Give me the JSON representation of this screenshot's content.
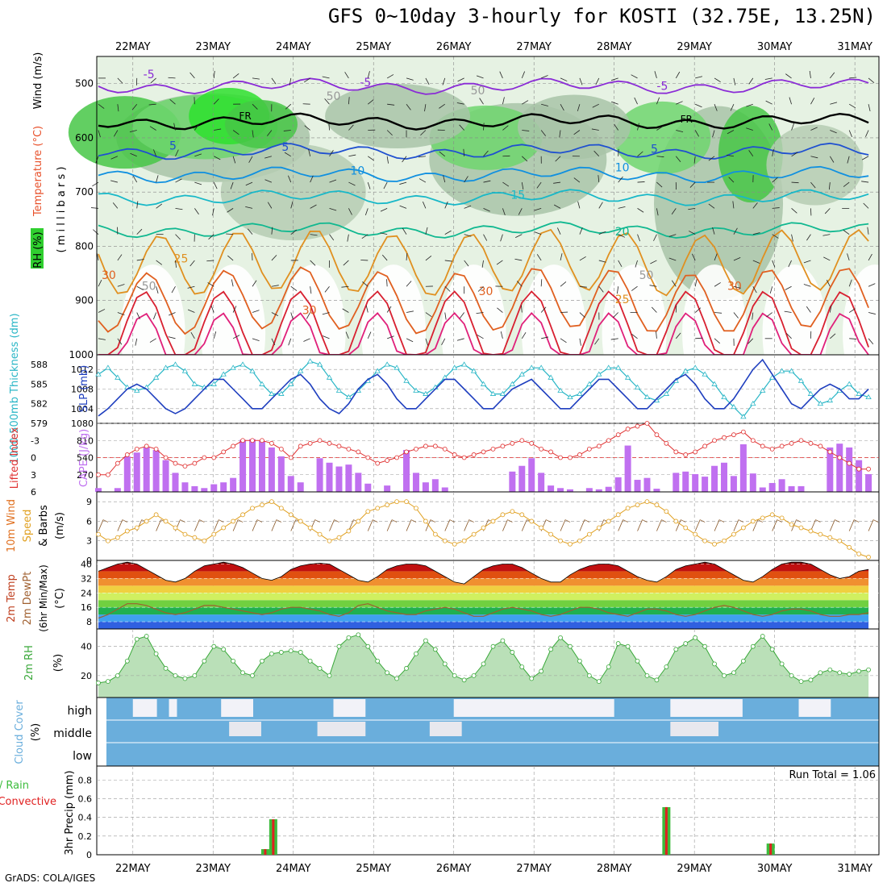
{
  "title": "GFS 0~10day 3-hourly for KOSTI (32.75E, 13.25N)",
  "credit": "GrADS: COLA/IGES",
  "dates": [
    "22MAY",
    "23MAY",
    "24MAY",
    "25MAY",
    "26MAY",
    "27MAY",
    "28MAY",
    "29MAY",
    "30MAY",
    "31MAY"
  ],
  "colors": {
    "rh": "#2fcf2f",
    "wind": "#000000",
    "temp_label": "#e8502a",
    "thickness": "#29b6c6",
    "slp": "#1f3fbf",
    "lifted": "#e03030",
    "cape": "#c070f0",
    "wind10": "#e0a020",
    "rh2m": "#3aa83a",
    "cloud": "#6aaedc",
    "precip_total": "#3cbc3c",
    "precip_conv": "#e02020"
  },
  "chart_data": [
    {
      "type": "heatmap",
      "panel": "upper_air",
      "ylabel_parts": [
        "RH (%)",
        "Temperature (°C)",
        "Wind (m/s)"
      ],
      "yunits": "( m i l l i b a r s )",
      "ytick_labels": [
        "500",
        "600",
        "700",
        "800",
        "900",
        "1000"
      ],
      "ylim": [
        1000,
        450
      ],
      "contour_labels": [
        "-5",
        "-5",
        "-5",
        "FR",
        "FR",
        "5",
        "5",
        "5",
        "10",
        "10",
        "15",
        "20",
        "25",
        "25",
        "30",
        "30",
        "30",
        "30",
        "50",
        "50",
        "50",
        "50"
      ],
      "isotherms": [
        {
          "label": "-5",
          "mb": 505
        },
        {
          "label": "FR",
          "mb": 570
        },
        {
          "label": "5",
          "mb": 625
        },
        {
          "label": "10",
          "mb": 668
        },
        {
          "label": "15",
          "mb": 710
        },
        {
          "label": "20",
          "mb": 770
        },
        {
          "label": "25",
          "mb": 830
        },
        {
          "label": "30",
          "mb": 900
        }
      ]
    },
    {
      "type": "line",
      "panel": "thickness_slp",
      "ylabel": "1000-500mb Thickness (dm)",
      "ylabel2": "SLP (mb)",
      "yticks_left": [
        "588",
        "585",
        "582",
        "579"
      ],
      "yticks_right": [
        "1012",
        "1008",
        "1004"
      ],
      "ylim_left": [
        579,
        589.5
      ],
      "ylim_right": [
        1001,
        1015
      ],
      "series": [
        {
          "name": "1000-500mb Thickness",
          "values": [
            586.5,
            587.5,
            586,
            584.5,
            584,
            584.5,
            586,
            587.5,
            588,
            587,
            585,
            584.5,
            585,
            586.5,
            587.5,
            588,
            587,
            585,
            583.5,
            583.5,
            585,
            587,
            588.5,
            588,
            586,
            584,
            583,
            584,
            585.5,
            587,
            588,
            587.5,
            585.5,
            584,
            583.5,
            584.5,
            586,
            587.5,
            588,
            587,
            585,
            583.5,
            583.5,
            585,
            586.5,
            587.5,
            587.5,
            586,
            584,
            583,
            583.5,
            585,
            586.5,
            587.5,
            587.5,
            586,
            584.5,
            583,
            582.5,
            583.5,
            585.5,
            587,
            587.5,
            586.5,
            585,
            583,
            581.5,
            580,
            582,
            584,
            586,
            587,
            587,
            585.5,
            583.5,
            582,
            582.5,
            584,
            585,
            583.5,
            583
          ]
        },
        {
          "name": "SLP",
          "values": [
            1002.5,
            1004,
            1006,
            1008,
            1009,
            1008,
            1006,
            1004,
            1003,
            1004,
            1006,
            1008,
            1010,
            1010,
            1008,
            1006,
            1004,
            1004,
            1006,
            1008,
            1010,
            1011,
            1009,
            1006,
            1004,
            1003,
            1005,
            1008,
            1010,
            1011,
            1009,
            1006,
            1004,
            1004,
            1006,
            1008,
            1010,
            1010,
            1008,
            1006,
            1004,
            1004,
            1006,
            1008,
            1009,
            1010,
            1008,
            1006,
            1004,
            1004,
            1006,
            1008,
            1010,
            1010,
            1008,
            1006,
            1004,
            1004,
            1006,
            1008,
            1010,
            1011,
            1009,
            1006,
            1004,
            1004,
            1006,
            1009,
            1012,
            1014,
            1011,
            1008,
            1005,
            1004,
            1006,
            1008,
            1009,
            1008,
            1006,
            1006,
            1008
          ]
        }
      ]
    },
    {
      "type": "bar",
      "panel": "cape_li",
      "ylabel": "Lifted Index",
      "ylabel2": "CAPE (J/kg)",
      "yticks_left": [
        "-3",
        "0",
        "3",
        "6"
      ],
      "yticks_right": [
        "1080",
        "810",
        "540",
        "270"
      ],
      "ylim_cape": [
        0,
        1080
      ],
      "ylim_li": [
        6,
        -6
      ],
      "series": [
        {
          "name": "CAPE",
          "values": [
            60,
            0,
            60,
            560,
            620,
            700,
            660,
            500,
            300,
            150,
            90,
            60,
            120,
            150,
            220,
            820,
            830,
            800,
            700,
            560,
            250,
            150,
            0,
            530,
            460,
            400,
            430,
            300,
            130,
            0,
            100,
            0,
            660,
            300,
            150,
            200,
            70,
            0,
            0,
            0,
            0,
            0,
            0,
            320,
            410,
            530,
            300,
            100,
            60,
            40,
            0,
            60,
            40,
            80,
            230,
            730,
            190,
            220,
            50,
            0,
            300,
            320,
            280,
            240,
            410,
            460,
            250,
            750,
            290,
            70,
            140,
            200,
            90,
            90,
            0,
            0,
            700,
            760,
            700,
            500,
            280
          ]
        },
        {
          "name": "Lifted Index",
          "values": [
            3,
            3,
            1,
            -0.5,
            -1.5,
            -2,
            -1.5,
            0,
            1,
            1.5,
            1,
            0,
            0,
            -1,
            -2,
            -3,
            -3,
            -3,
            -2.5,
            -1.5,
            0,
            -2,
            -2.5,
            -3,
            -2.5,
            -2,
            -1.5,
            -1,
            0,
            1,
            0.5,
            0,
            -1,
            -1.5,
            -2,
            -2,
            -1.5,
            -0.5,
            0,
            -0.5,
            -1,
            -1.5,
            -2,
            -2.5,
            -3,
            -2.5,
            -1.5,
            -1,
            0,
            0,
            -0.5,
            -1.5,
            -2,
            -3,
            -4,
            -5,
            -5.5,
            -6,
            -4,
            -2.5,
            -1,
            -0.5,
            -1,
            -2,
            -3,
            -3.5,
            -4,
            -4.5,
            -3,
            -2,
            -1.5,
            -2,
            -2.5,
            -3,
            -2.5,
            -2,
            -1,
            0,
            1,
            2,
            2
          ]
        }
      ]
    },
    {
      "type": "line",
      "panel": "wind10m",
      "ylabel_parts": [
        "10m Wind",
        "Speed",
        "& Barbs",
        "(m/s)"
      ],
      "yticks": [
        "9",
        "6",
        "3",
        "0"
      ],
      "ylim": [
        0,
        10.5
      ],
      "series": [
        {
          "name": "10m Wind Speed",
          "values": [
            4,
            3,
            3.5,
            4.5,
            5,
            6,
            7,
            6,
            5,
            4,
            3.5,
            3,
            4,
            5,
            6,
            7,
            8,
            8.5,
            9,
            8,
            7,
            6,
            5,
            4,
            3,
            3.5,
            4.5,
            6,
            7.5,
            8,
            8.5,
            9,
            9,
            8,
            6,
            4,
            3,
            2.5,
            3,
            4,
            5,
            6,
            7,
            7.5,
            7,
            6,
            5,
            4,
            3,
            2.5,
            3,
            4,
            5,
            6,
            7,
            8,
            8.5,
            9,
            8.5,
            7.5,
            6,
            5,
            4,
            3,
            2.5,
            3,
            4,
            5,
            6,
            6.5,
            7,
            6.5,
            5.5,
            5,
            4.5,
            4,
            3.5,
            3,
            2,
            1,
            0.5
          ]
        }
      ]
    },
    {
      "type": "area",
      "panel": "temp_2m",
      "ylabel_parts": [
        "2m Temp",
        "2m DewPt",
        "(6hr Min/Max)",
        "(°C)"
      ],
      "yticks": [
        "40",
        "32",
        "24",
        "16",
        "8"
      ],
      "ylim": [
        4,
        42
      ],
      "series": [
        {
          "name": "2m Temp",
          "values": [
            36,
            38,
            40,
            41,
            40,
            37,
            34,
            31,
            30,
            32,
            36,
            39,
            40,
            41,
            40,
            38,
            35,
            32,
            31,
            33,
            37,
            39,
            40,
            40.5,
            40,
            37,
            34,
            31,
            30,
            33,
            37,
            39,
            40,
            40,
            39,
            36,
            33,
            30,
            29,
            33,
            37,
            39,
            40,
            40,
            38,
            35,
            32,
            30,
            30,
            34,
            37,
            39,
            40,
            40,
            39,
            36,
            33,
            31,
            30,
            33,
            37,
            39,
            40,
            41,
            40,
            37,
            34,
            31,
            30,
            33,
            37,
            40,
            41,
            41,
            40,
            37,
            34,
            32,
            33,
            36,
            37
          ]
        },
        {
          "name": "2m DewPt",
          "values": [
            10,
            12,
            15,
            18,
            18,
            17,
            15,
            13,
            12,
            13,
            15,
            17,
            17,
            16,
            15,
            14,
            13,
            12,
            13,
            15,
            16,
            16,
            15,
            14,
            12,
            11,
            13,
            17,
            18,
            16,
            14,
            13,
            12,
            12,
            14,
            15,
            16,
            15,
            13,
            11,
            11,
            13,
            15,
            16,
            15,
            14,
            12,
            11,
            12,
            14,
            16,
            16,
            15,
            13,
            12,
            11,
            13,
            15,
            15,
            14,
            12,
            11,
            12,
            14,
            16,
            17,
            16,
            14,
            12,
            11,
            12,
            14,
            15,
            15,
            14,
            12,
            11,
            11,
            12,
            12,
            13
          ]
        }
      ]
    },
    {
      "type": "area",
      "panel": "rh_2m",
      "ylabel": "2m RH",
      "yunits": "(%)",
      "yticks": [
        "40",
        "20"
      ],
      "ylim": [
        5,
        52
      ],
      "series": [
        {
          "name": "2m RH",
          "values": [
            15,
            16,
            20,
            30,
            45,
            47,
            35,
            25,
            20,
            18,
            20,
            30,
            40,
            38,
            30,
            22,
            20,
            30,
            35,
            36,
            37,
            36,
            30,
            25,
            20,
            40,
            46,
            48,
            40,
            30,
            22,
            18,
            25,
            35,
            44,
            38,
            28,
            20,
            17,
            20,
            28,
            40,
            44,
            36,
            26,
            18,
            23,
            38,
            46,
            40,
            30,
            20,
            16,
            26,
            42,
            40,
            30,
            20,
            17,
            26,
            38,
            42,
            46,
            40,
            28,
            20,
            22,
            30,
            40,
            47,
            38,
            28,
            20,
            16,
            17,
            22,
            24,
            22,
            21,
            23,
            24
          ]
        }
      ]
    },
    {
      "type": "heatmap",
      "panel": "cloud_cover",
      "ylabel": "Cloud Cover",
      "yunits": "(%)",
      "levels": [
        "high",
        "middle",
        "low"
      ]
    },
    {
      "type": "bar",
      "panel": "precip",
      "ylabel": "3hr Precip (mm)",
      "legend": [
        "Total / Rain",
        "Convective"
      ],
      "annotation": "Run Total = 1.06",
      "yticks": [
        "0.8",
        "0.6",
        "0.4",
        "0.2",
        "0"
      ],
      "ylim": [
        0,
        0.95
      ],
      "series": [
        {
          "name": "Total",
          "points": [
            {
              "day": 23.65,
              "value": 0.06
            },
            {
              "day": 23.75,
              "value": 0.38
            },
            {
              "day": 28.65,
              "value": 0.51
            },
            {
              "day": 29.95,
              "value": 0.12
            }
          ]
        }
      ]
    }
  ]
}
